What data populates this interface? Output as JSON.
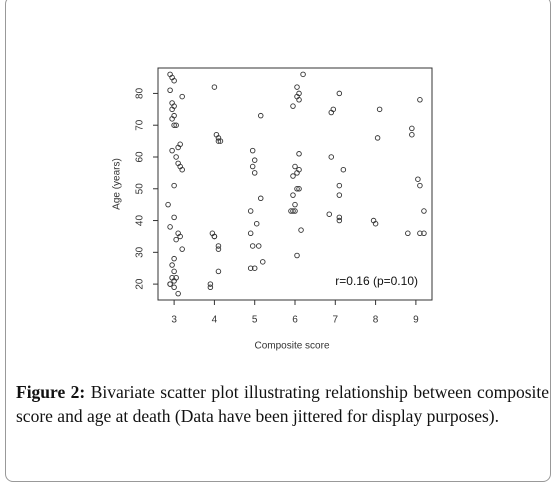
{
  "chart_data": {
    "type": "scatter",
    "xlabel": "Composite score",
    "ylabel": "Age (years)",
    "annotation": "r=0.16 (p=0.10)",
    "xlim": [
      2.6,
      9.4
    ],
    "ylim": [
      15,
      88
    ],
    "xticks": [
      3,
      4,
      5,
      6,
      7,
      8,
      9
    ],
    "yticks": [
      20,
      30,
      40,
      50,
      60,
      70,
      80
    ],
    "color": "#333333",
    "x": [
      2.9,
      2.95,
      3.0,
      2.9,
      3.2,
      2.95,
      3.0,
      2.95,
      3.0,
      2.95,
      3.05,
      3.0,
      3.15,
      3.1,
      2.95,
      3.05,
      3.1,
      3.15,
      3.2,
      3.0,
      2.85,
      3.0,
      2.9,
      3.1,
      3.15,
      3.05,
      3.2,
      3.0,
      2.95,
      3.0,
      3.05,
      2.95,
      3.0,
      2.9,
      2.9,
      3.0,
      3.1,
      4.0,
      4.05,
      4.1,
      4.1,
      4.15,
      3.95,
      4.0,
      4.0,
      4.1,
      4.1,
      4.1,
      3.9,
      3.9,
      5.15,
      4.95,
      5.0,
      4.95,
      5.0,
      5.15,
      4.9,
      5.05,
      4.9,
      4.95,
      5.1,
      5.2,
      4.9,
      5.0,
      6.2,
      6.05,
      6.1,
      6.05,
      6.1,
      5.95,
      6.1,
      6.0,
      6.1,
      6.05,
      5.95,
      6.05,
      6.1,
      5.95,
      6.0,
      5.95,
      6.0,
      5.9,
      6.15,
      6.05,
      7.1,
      6.95,
      6.9,
      6.9,
      7.2,
      7.1,
      7.1,
      6.85,
      7.1,
      7.1,
      8.1,
      8.05,
      7.95,
      8.0,
      9.1,
      8.9,
      8.9,
      9.05,
      9.1,
      9.2,
      8.8,
      9.1,
      9.2
    ],
    "y": [
      86,
      85,
      84,
      81,
      79,
      77,
      76,
      75,
      73,
      72,
      70,
      70,
      64,
      63,
      62,
      60,
      58,
      57,
      56,
      51,
      45,
      41,
      38,
      36,
      35,
      34,
      31,
      28,
      26,
      24,
      22,
      22,
      21,
      20,
      20,
      19,
      17,
      82,
      67,
      66,
      65,
      65,
      36,
      35,
      35,
      32,
      31,
      24,
      20,
      19,
      73,
      62,
      59,
      57,
      55,
      47,
      43,
      39,
      36,
      32,
      32,
      27,
      25,
      25,
      86,
      82,
      80,
      79,
      78,
      76,
      61,
      57,
      56,
      55,
      54,
      50,
      50,
      48,
      45,
      43,
      43,
      43,
      37,
      29,
      80,
      75,
      74,
      60,
      56,
      51,
      48,
      42,
      41,
      40,
      75,
      66,
      40,
      39,
      78,
      69,
      67,
      53,
      51,
      43,
      36,
      36,
      36
    ]
  },
  "caption": {
    "label": "Figure 2:",
    "text": "Bivariate scatter plot illustrating relationship between composite score and age at death (Data have been jittered for display purposes)."
  }
}
